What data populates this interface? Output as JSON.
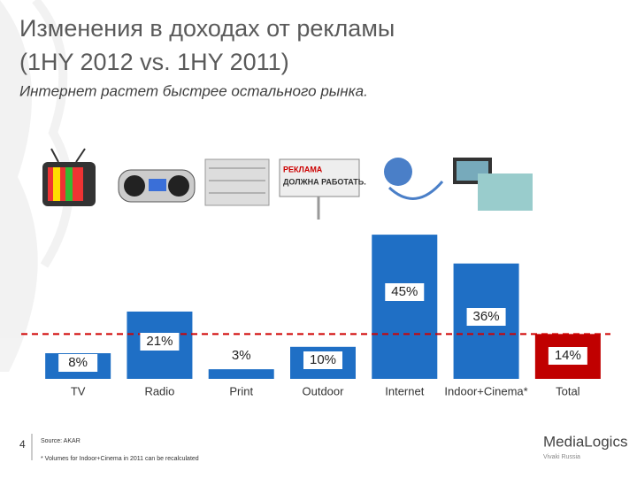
{
  "chart_data": {
    "type": "bar",
    "title": [
      "Изменения в доходах от рекламы",
      "(1HY 2012 vs. 1HY 2011)"
    ],
    "subtitle": "Интернет растет быстрее остального рынка.",
    "categories": [
      "TV",
      "Radio",
      "Print",
      "Outdoor",
      "Internet",
      "Indoor+Cinema*",
      "Total"
    ],
    "values": [
      8,
      21,
      3,
      10,
      45,
      36,
      14
    ],
    "value_labels": [
      "8%",
      "21%",
      "3%",
      "10%",
      "45%",
      "36%",
      "14%"
    ],
    "colors": [
      "#1f6fc5",
      "#1f6fc5",
      "#1f6fc5",
      "#1f6fc5",
      "#1f6fc5",
      "#1f6fc5",
      "#c00000"
    ],
    "reference_line": {
      "value": 14,
      "color": "#d00000",
      "style": "dashed"
    }
  },
  "footer": {
    "slide_number": "4",
    "source": "Source: AKAR",
    "footnote": "* Volumes for Indoor+Cinema in 2011 can be recalculated",
    "logo": "MediaLogics",
    "logo_sub": "Vivaki Russia"
  }
}
